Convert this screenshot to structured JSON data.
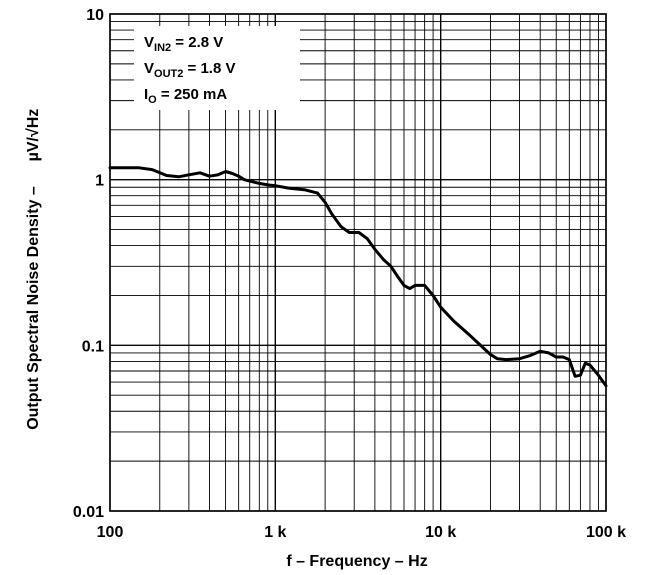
{
  "chart_data": {
    "type": "line",
    "xlabel": "f – Frequency – Hz",
    "ylabel_main": "Output Spectral Noise Density –",
    "ylabel_unit": "µV/√Hz",
    "x_scale": "log",
    "y_scale": "log",
    "xlim": [
      100,
      100000
    ],
    "ylim": [
      0.01,
      10
    ],
    "x_ticks": [
      "100",
      "1 k",
      "10 k",
      "100 k"
    ],
    "y_ticks": [
      "0.01",
      "0.1",
      "1",
      "10"
    ],
    "grid": true,
    "annotations": [
      {
        "main": "V",
        "sub": "IN2",
        "rest": " = 2.8 V"
      },
      {
        "main": "V",
        "sub": "OUT2",
        "rest": " = 1.8 V"
      },
      {
        "main": "I",
        "sub": "O",
        "rest": " = 250 mA"
      }
    ],
    "series": [
      {
        "x": [
          100,
          120,
          150,
          180,
          220,
          260,
          300,
          350,
          400,
          450,
          500,
          550,
          600,
          650,
          700,
          800,
          900,
          1000,
          1200,
          1500,
          1800,
          2000,
          2200,
          2500,
          2800,
          3200,
          3600,
          4000,
          4500,
          5000,
          5500,
          6000,
          6500,
          7000,
          8000,
          9000,
          10000,
          12000,
          15000,
          18000,
          20000,
          22000,
          25000,
          30000,
          35000,
          40000,
          45000,
          50000,
          55000,
          60000,
          65000,
          70000,
          75000,
          80000,
          90000,
          100000
        ],
        "y": [
          1.18,
          1.18,
          1.18,
          1.15,
          1.06,
          1.04,
          1.07,
          1.1,
          1.05,
          1.07,
          1.12,
          1.09,
          1.05,
          1.0,
          0.98,
          0.95,
          0.93,
          0.92,
          0.89,
          0.87,
          0.83,
          0.73,
          0.62,
          0.52,
          0.48,
          0.48,
          0.44,
          0.38,
          0.33,
          0.3,
          0.26,
          0.23,
          0.22,
          0.23,
          0.23,
          0.2,
          0.17,
          0.14,
          0.115,
          0.097,
          0.088,
          0.083,
          0.082,
          0.083,
          0.087,
          0.092,
          0.09,
          0.085,
          0.085,
          0.082,
          0.065,
          0.066,
          0.078,
          0.076,
          0.066,
          0.057
        ]
      }
    ],
    "colors": {
      "line": "#000000",
      "grid": "#000000",
      "background": "#ffffff"
    }
  }
}
